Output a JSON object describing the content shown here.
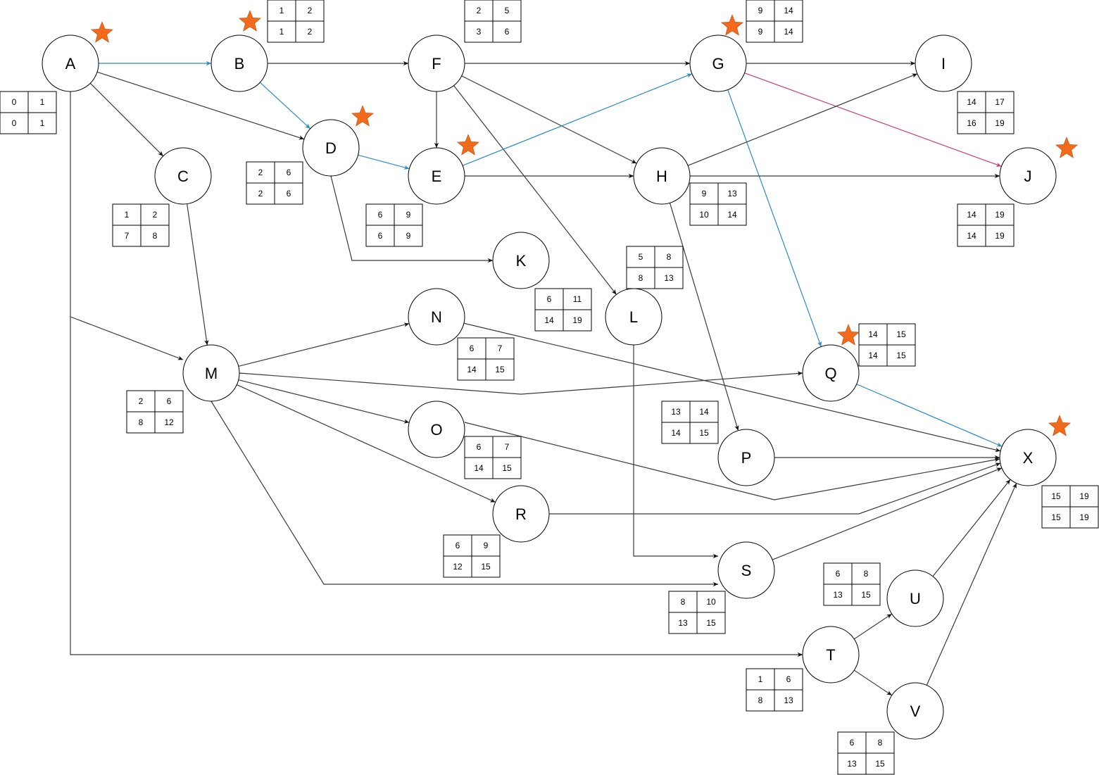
{
  "colors": {
    "default_edge": "#3a3a3a",
    "critical_edge": "#2b8ac3",
    "pink_edge": "#c83e6e",
    "star": "#f26a1b"
  },
  "nodes": [
    {
      "id": "A",
      "label": "A",
      "star": true,
      "table": [
        [
          0,
          1
        ],
        [
          0,
          1
        ]
      ]
    },
    {
      "id": "B",
      "label": "B",
      "star": true,
      "table": [
        [
          1,
          2
        ],
        [
          1,
          2
        ]
      ]
    },
    {
      "id": "C",
      "label": "C",
      "star": false,
      "table": [
        [
          1,
          2
        ],
        [
          7,
          8
        ]
      ]
    },
    {
      "id": "D",
      "label": "D",
      "star": true,
      "table": [
        [
          2,
          6
        ],
        [
          2,
          6
        ]
      ]
    },
    {
      "id": "E",
      "label": "E",
      "star": true,
      "table": [
        [
          6,
          9
        ],
        [
          6,
          9
        ]
      ]
    },
    {
      "id": "F",
      "label": "F",
      "star": false,
      "table": [
        [
          2,
          5
        ],
        [
          3,
          6
        ]
      ]
    },
    {
      "id": "G",
      "label": "G",
      "star": true,
      "table": [
        [
          9,
          14
        ],
        [
          9,
          14
        ]
      ]
    },
    {
      "id": "H",
      "label": "H",
      "star": false,
      "table": [
        [
          9,
          13
        ],
        [
          10,
          14
        ]
      ]
    },
    {
      "id": "I",
      "label": "I",
      "star": false,
      "table": [
        [
          14,
          17
        ],
        [
          16,
          19
        ]
      ]
    },
    {
      "id": "J",
      "label": "J",
      "star": true,
      "table": [
        [
          14,
          19
        ],
        [
          14,
          19
        ]
      ]
    },
    {
      "id": "K",
      "label": "K",
      "star": false,
      "table": [
        [
          6,
          11
        ],
        [
          14,
          19
        ]
      ]
    },
    {
      "id": "L",
      "label": "L",
      "star": false,
      "table": [
        [
          5,
          8
        ],
        [
          8,
          13
        ]
      ]
    },
    {
      "id": "M",
      "label": "M",
      "star": false,
      "table": [
        [
          2,
          6
        ],
        [
          8,
          12
        ]
      ]
    },
    {
      "id": "N",
      "label": "N",
      "star": false,
      "table": [
        [
          6,
          7
        ],
        [
          14,
          15
        ]
      ]
    },
    {
      "id": "O",
      "label": "O",
      "star": false,
      "table": [
        [
          6,
          7
        ],
        [
          14,
          15
        ]
      ]
    },
    {
      "id": "P",
      "label": "P",
      "star": false,
      "table": [
        [
          13,
          14
        ],
        [
          14,
          15
        ]
      ]
    },
    {
      "id": "Q",
      "label": "Q",
      "star": true,
      "table": [
        [
          14,
          15
        ],
        [
          14,
          15
        ]
      ]
    },
    {
      "id": "R",
      "label": "R",
      "star": false,
      "table": [
        [
          6,
          9
        ],
        [
          12,
          15
        ]
      ]
    },
    {
      "id": "S",
      "label": "S",
      "star": false,
      "table": [
        [
          8,
          10
        ],
        [
          13,
          15
        ]
      ]
    },
    {
      "id": "T",
      "label": "T",
      "star": false,
      "table": [
        [
          1,
          6
        ],
        [
          8,
          13
        ]
      ]
    },
    {
      "id": "U",
      "label": "U",
      "star": false,
      "table": [
        [
          6,
          8
        ],
        [
          13,
          15
        ]
      ]
    },
    {
      "id": "V",
      "label": "V",
      "star": false,
      "table": [
        [
          6,
          8
        ],
        [
          13,
          15
        ]
      ]
    },
    {
      "id": "X",
      "label": "X",
      "star": true,
      "table": [
        [
          15,
          19
        ],
        [
          15,
          19
        ]
      ]
    }
  ],
  "edges": [
    {
      "from": "A",
      "to": "B",
      "style": "critical"
    },
    {
      "from": "A",
      "to": "C",
      "style": "default"
    },
    {
      "from": "A",
      "to": "D",
      "style": "default"
    },
    {
      "from": "A",
      "to": "M",
      "style": "default"
    },
    {
      "from": "A",
      "to": "T",
      "style": "default"
    },
    {
      "from": "B",
      "to": "F",
      "style": "default"
    },
    {
      "from": "B",
      "to": "D",
      "style": "critical"
    },
    {
      "from": "C",
      "to": "M",
      "style": "default"
    },
    {
      "from": "D",
      "to": "E",
      "style": "critical"
    },
    {
      "from": "D",
      "to": "K",
      "style": "default"
    },
    {
      "from": "F",
      "to": "G",
      "style": "default"
    },
    {
      "from": "F",
      "to": "E",
      "style": "default"
    },
    {
      "from": "F",
      "to": "H",
      "style": "default"
    },
    {
      "from": "F",
      "to": "L",
      "style": "default"
    },
    {
      "from": "E",
      "to": "G",
      "style": "critical"
    },
    {
      "from": "E",
      "to": "H",
      "style": "default"
    },
    {
      "from": "G",
      "to": "I",
      "style": "default"
    },
    {
      "from": "G",
      "to": "J",
      "style": "pink"
    },
    {
      "from": "G",
      "to": "Q",
      "style": "critical"
    },
    {
      "from": "H",
      "to": "I",
      "style": "default"
    },
    {
      "from": "H",
      "to": "J",
      "style": "default"
    },
    {
      "from": "H",
      "to": "P",
      "style": "default"
    },
    {
      "from": "L",
      "to": "S",
      "style": "default"
    },
    {
      "from": "M",
      "to": "N",
      "style": "default"
    },
    {
      "from": "M",
      "to": "Q",
      "style": "default"
    },
    {
      "from": "M",
      "to": "O",
      "style": "default"
    },
    {
      "from": "M",
      "to": "R",
      "style": "default"
    },
    {
      "from": "M",
      "to": "S",
      "style": "default"
    },
    {
      "from": "N",
      "to": "X",
      "style": "default"
    },
    {
      "from": "Q",
      "to": "X",
      "style": "critical"
    },
    {
      "from": "O",
      "to": "X",
      "style": "default"
    },
    {
      "from": "P",
      "to": "X",
      "style": "default"
    },
    {
      "from": "R",
      "to": "X",
      "style": "default"
    },
    {
      "from": "S",
      "to": "X",
      "style": "default"
    },
    {
      "from": "T",
      "to": "U",
      "style": "default"
    },
    {
      "from": "T",
      "to": "V",
      "style": "default"
    },
    {
      "from": "U",
      "to": "X",
      "style": "default"
    },
    {
      "from": "V",
      "to": "X",
      "style": "default"
    }
  ]
}
